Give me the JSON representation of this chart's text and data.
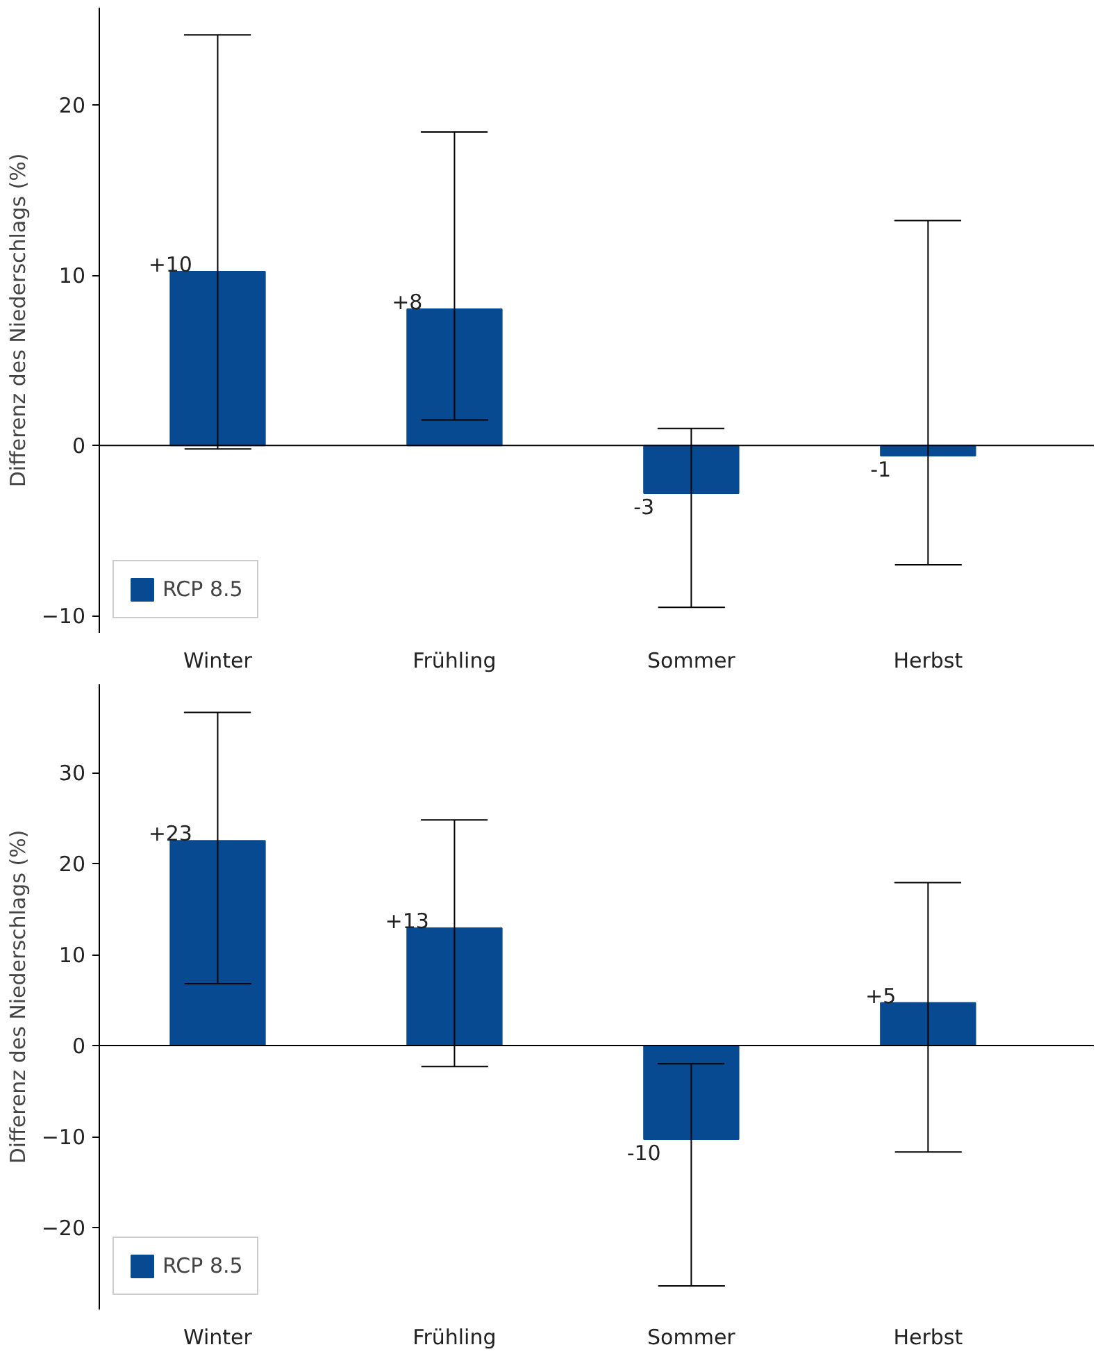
{
  "chart_data": [
    {
      "type": "bar",
      "ylabel": "Differenz des Niederschlags (%)",
      "categories": [
        "Winter",
        "Frühling",
        "Sommer",
        "Herbst"
      ],
      "series": [
        {
          "name": "RCP 8.5",
          "color": "#084a91",
          "values": [
            10.2,
            8.0,
            -2.8,
            -0.6
          ],
          "value_labels": [
            "+10",
            "+8",
            "-3",
            "-1"
          ],
          "errors": [
            [
              -0.2,
              24.1
            ],
            [
              1.5,
              18.4
            ],
            [
              -9.5,
              1.0
            ],
            [
              -7.0,
              13.2
            ]
          ]
        }
      ],
      "ylim": [
        -11,
        25.7
      ],
      "yticks": [
        -10,
        0,
        10,
        20
      ],
      "ref_lines": [
        {
          "axis": "y",
          "value": 0,
          "color": "#000000"
        }
      ],
      "legend": "bottom left",
      "grid": false
    },
    {
      "type": "bar",
      "ylabel": "Differenz des Niederschlags (%)",
      "categories": [
        "Winter",
        "Frühling",
        "Sommer",
        "Herbst"
      ],
      "series": [
        {
          "name": "RCP 8.5",
          "color": "#084a91",
          "values": [
            22.5,
            12.9,
            -10.3,
            4.7
          ],
          "value_labels": [
            "+23",
            "+13",
            "-10",
            "+5"
          ],
          "errors": [
            [
              6.8,
              36.6
            ],
            [
              -2.3,
              24.8
            ],
            [
              -26.4,
              -2.0
            ],
            [
              -11.7,
              17.9
            ]
          ]
        }
      ],
      "ylim": [
        -29,
        39.7
      ],
      "yticks": [
        -20,
        -10,
        0,
        10,
        20,
        30
      ],
      "ref_lines": [
        {
          "axis": "y",
          "value": 0,
          "color": "#000000"
        }
      ],
      "legend": "bottom left",
      "grid": false
    }
  ]
}
